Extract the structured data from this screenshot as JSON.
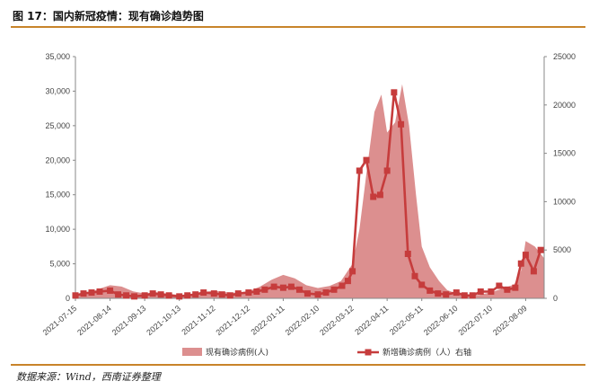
{
  "figure": {
    "title": "图 17：国内新冠疫情：现有确诊趋势图",
    "source": "数据来源：Wind，西南证券整理"
  },
  "chart_data": {
    "type": "area+line",
    "x_tick_labels": [
      "2021-07-15",
      "2021-08-14",
      "2021-09-13",
      "2021-10-13",
      "2021-11-12",
      "2021-12-12",
      "2022-01-11",
      "2022-02-10",
      "2022-03-12",
      "2022-04-11",
      "2022-05-11",
      "2022-06-10",
      "2022-07-10",
      "2022-08-09"
    ],
    "x_range": [
      "2021-07-15",
      "2022-08-25"
    ],
    "y_left": {
      "ticks": [
        "0",
        "5,000",
        "10,000",
        "15,000",
        "20,000",
        "25,000",
        "30,000",
        "35,000"
      ],
      "range": [
        0,
        35000
      ]
    },
    "y_right": {
      "ticks": [
        "0",
        "5000",
        "10000",
        "15000",
        "20000",
        "25000"
      ],
      "range": [
        0,
        25000
      ]
    },
    "grid": false,
    "legend_position": "bottom",
    "series": [
      {
        "name": "现有确诊病例(人)",
        "axis": "left",
        "style": "area",
        "color": "#dc8f8f",
        "points": [
          [
            "2021-07-15",
            300
          ],
          [
            "2021-07-25",
            700
          ],
          [
            "2021-08-05",
            1400
          ],
          [
            "2021-08-14",
            1900
          ],
          [
            "2021-08-24",
            1700
          ],
          [
            "2021-09-03",
            1000
          ],
          [
            "2021-09-13",
            700
          ],
          [
            "2021-09-23",
            900
          ],
          [
            "2021-10-03",
            700
          ],
          [
            "2021-10-13",
            500
          ],
          [
            "2021-10-23",
            600
          ],
          [
            "2021-11-02",
            900
          ],
          [
            "2021-11-12",
            1100
          ],
          [
            "2021-11-22",
            900
          ],
          [
            "2021-12-02",
            800
          ],
          [
            "2021-12-12",
            1000
          ],
          [
            "2021-12-22",
            1700
          ],
          [
            "2022-01-01",
            2700
          ],
          [
            "2022-01-11",
            3400
          ],
          [
            "2022-01-21",
            2900
          ],
          [
            "2022-01-31",
            1900
          ],
          [
            "2022-02-10",
            1500
          ],
          [
            "2022-02-20",
            1800
          ],
          [
            "2022-03-02",
            2500
          ],
          [
            "2022-03-12",
            5000
          ],
          [
            "2022-03-18",
            10000
          ],
          [
            "2022-03-24",
            18000
          ],
          [
            "2022-03-31",
            27000
          ],
          [
            "2022-04-06",
            29500
          ],
          [
            "2022-04-11",
            24000
          ],
          [
            "2022-04-18",
            25500
          ],
          [
            "2022-04-24",
            31000
          ],
          [
            "2022-04-30",
            25000
          ],
          [
            "2022-05-06",
            15000
          ],
          [
            "2022-05-11",
            7500
          ],
          [
            "2022-05-18",
            4500
          ],
          [
            "2022-05-26",
            2500
          ],
          [
            "2022-06-02",
            1200
          ],
          [
            "2022-06-10",
            700
          ],
          [
            "2022-06-20",
            500
          ],
          [
            "2022-06-30",
            500
          ],
          [
            "2022-07-10",
            900
          ],
          [
            "2022-07-20",
            1400
          ],
          [
            "2022-07-30",
            2000
          ],
          [
            "2022-08-05",
            4000
          ],
          [
            "2022-08-09",
            8300
          ],
          [
            "2022-08-17",
            7500
          ],
          [
            "2022-08-25",
            5800
          ]
        ]
      },
      {
        "name": "新增确诊病例（人）右轴",
        "axis": "right",
        "style": "line-marker",
        "color": "#c63c3c",
        "points": [
          [
            "2021-07-15",
            300
          ],
          [
            "2021-07-22",
            500
          ],
          [
            "2021-07-29",
            600
          ],
          [
            "2021-08-05",
            700
          ],
          [
            "2021-08-14",
            800
          ],
          [
            "2021-08-21",
            400
          ],
          [
            "2021-08-28",
            300
          ],
          [
            "2021-09-04",
            200
          ],
          [
            "2021-09-13",
            300
          ],
          [
            "2021-09-20",
            500
          ],
          [
            "2021-09-27",
            400
          ],
          [
            "2021-10-04",
            300
          ],
          [
            "2021-10-13",
            200
          ],
          [
            "2021-10-20",
            300
          ],
          [
            "2021-10-27",
            400
          ],
          [
            "2021-11-03",
            600
          ],
          [
            "2021-11-12",
            500
          ],
          [
            "2021-11-19",
            400
          ],
          [
            "2021-11-26",
            300
          ],
          [
            "2021-12-03",
            500
          ],
          [
            "2021-12-12",
            600
          ],
          [
            "2021-12-19",
            700
          ],
          [
            "2021-12-26",
            900
          ],
          [
            "2022-01-03",
            1200
          ],
          [
            "2022-01-11",
            1100
          ],
          [
            "2022-01-18",
            1200
          ],
          [
            "2022-01-25",
            900
          ],
          [
            "2022-02-01",
            500
          ],
          [
            "2022-02-10",
            400
          ],
          [
            "2022-02-17",
            600
          ],
          [
            "2022-02-24",
            900
          ],
          [
            "2022-03-03",
            1300
          ],
          [
            "2022-03-08",
            1800
          ],
          [
            "2022-03-12",
            2800
          ],
          [
            "2022-03-18",
            13200
          ],
          [
            "2022-03-24",
            14300
          ],
          [
            "2022-03-30",
            10500
          ],
          [
            "2022-04-05",
            10700
          ],
          [
            "2022-04-11",
            13200
          ],
          [
            "2022-04-17",
            21300
          ],
          [
            "2022-04-23",
            18000
          ],
          [
            "2022-04-29",
            4600
          ],
          [
            "2022-05-05",
            2300
          ],
          [
            "2022-05-11",
            1400
          ],
          [
            "2022-05-18",
            800
          ],
          [
            "2022-05-25",
            500
          ],
          [
            "2022-06-01",
            400
          ],
          [
            "2022-06-10",
            600
          ],
          [
            "2022-06-17",
            300
          ],
          [
            "2022-06-24",
            300
          ],
          [
            "2022-07-01",
            700
          ],
          [
            "2022-07-10",
            700
          ],
          [
            "2022-07-17",
            1300
          ],
          [
            "2022-07-24",
            900
          ],
          [
            "2022-07-31",
            1100
          ],
          [
            "2022-08-05",
            3600
          ],
          [
            "2022-08-09",
            4500
          ],
          [
            "2022-08-16",
            2800
          ],
          [
            "2022-08-22",
            5000
          ]
        ]
      }
    ]
  }
}
